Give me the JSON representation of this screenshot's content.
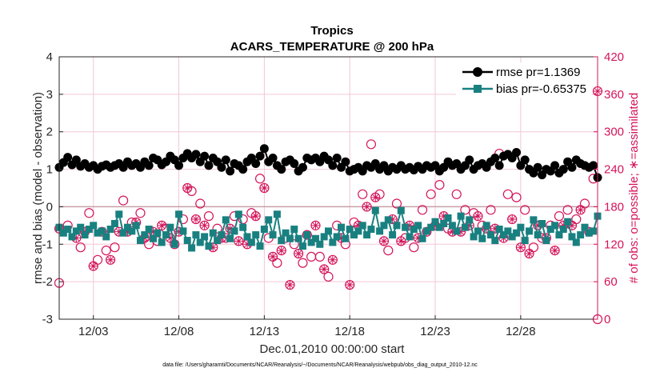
{
  "chart_data": {
    "type": "line",
    "title": "Tropics",
    "subtitle": "ACARS_TEMPERATURE @ 200 hPa",
    "xlabel": "Dec.01,2010 00:00:00 start",
    "ylabel": "rmse and bias (model - observation)",
    "ylabel_right": "# of obs: o=possible; ∗=assimilated",
    "footnote": "data file: /Users/gharamti/Documents/NCAR/Reanalysis/~/Documents/NCAR/Reanalysis/webpub/obs_diag_output_2010-12.nc",
    "xlim": [
      1,
      32.5
    ],
    "ylim": [
      -3,
      4
    ],
    "ylim_right": [
      0,
      420
    ],
    "x_ticks": [
      3,
      8,
      13,
      18,
      23,
      28
    ],
    "x_tick_labels": [
      "12/03",
      "12/08",
      "12/13",
      "12/18",
      "12/23",
      "12/28"
    ],
    "y_ticks": [
      "4",
      "3",
      "2",
      "1",
      "0",
      "-1",
      "-2",
      "-3"
    ],
    "y_ticks_right": [
      "420",
      "360",
      "300",
      "240",
      "180",
      "120",
      "60",
      "0"
    ],
    "x": [
      1.0,
      1.25,
      1.5,
      1.75,
      2.0,
      2.25,
      2.5,
      2.75,
      3.0,
      3.25,
      3.5,
      3.75,
      4.0,
      4.25,
      4.5,
      4.75,
      5.0,
      5.25,
      5.5,
      5.75,
      6.0,
      6.25,
      6.5,
      6.75,
      7.0,
      7.25,
      7.5,
      7.75,
      8.0,
      8.25,
      8.5,
      8.75,
      9.0,
      9.25,
      9.5,
      9.75,
      10.0,
      10.25,
      10.5,
      10.75,
      11.0,
      11.25,
      11.5,
      11.75,
      12.0,
      12.25,
      12.5,
      12.75,
      13.0,
      13.25,
      13.5,
      13.75,
      14.0,
      14.25,
      14.5,
      14.75,
      15.0,
      15.25,
      15.5,
      15.75,
      16.0,
      16.25,
      16.5,
      16.75,
      17.0,
      17.25,
      17.5,
      17.75,
      18.0,
      18.25,
      18.5,
      18.75,
      19.0,
      19.25,
      19.5,
      19.75,
      20.0,
      20.25,
      20.5,
      20.75,
      21.0,
      21.25,
      21.5,
      21.75,
      22.0,
      22.25,
      22.5,
      22.75,
      23.0,
      23.25,
      23.5,
      23.75,
      24.0,
      24.25,
      24.5,
      24.75,
      25.0,
      25.25,
      25.5,
      25.75,
      26.0,
      26.25,
      26.5,
      26.75,
      27.0,
      27.25,
      27.5,
      27.75,
      28.0,
      28.25,
      28.5,
      28.75,
      29.0,
      29.25,
      29.5,
      29.75,
      30.0,
      30.25,
      30.5,
      30.75,
      31.0,
      31.25,
      31.5,
      31.75,
      32.0,
      32.25,
      32.5
    ],
    "series": [
      {
        "name": "rmse pr=1.1369",
        "color": "#000000",
        "marker": "circle",
        "values": [
          1.05,
          1.18,
          1.32,
          1.12,
          1.25,
          1.08,
          1.15,
          1.05,
          1.1,
          1.0,
          1.08,
          1.12,
          1.05,
          1.1,
          1.15,
          1.05,
          1.2,
          1.1,
          1.15,
          1.05,
          1.2,
          1.1,
          1.3,
          1.25,
          1.12,
          1.2,
          1.35,
          1.25,
          1.1,
          1.3,
          1.42,
          1.3,
          1.4,
          1.2,
          1.35,
          1.1,
          1.3,
          1.2,
          1.05,
          1.25,
          0.95,
          1.15,
          1.1,
          1.0,
          1.2,
          1.3,
          1.15,
          1.35,
          1.55,
          1.2,
          1.3,
          1.1,
          1.0,
          1.2,
          1.25,
          1.15,
          0.95,
          1.05,
          1.3,
          1.25,
          1.3,
          1.2,
          1.35,
          1.25,
          1.1,
          1.3,
          1.05,
          1.2,
          0.95,
          1.0,
          1.05,
          0.95,
          1.1,
          1.05,
          1.15,
          1.0,
          1.1,
          0.95,
          1.05,
          1.0,
          1.1,
          1.0,
          1.05,
          0.98,
          1.08,
          1.0,
          1.1,
          1.05,
          1.1,
          0.95,
          1.05,
          1.2,
          1.1,
          1.15,
          1.0,
          1.1,
          1.25,
          1.0,
          1.1,
          1.15,
          1.05,
          1.2,
          1.3,
          1.1,
          1.35,
          1.4,
          1.3,
          1.45,
          1.1,
          1.25,
          1.0,
          0.9,
          1.05,
          0.85,
          1.0,
          0.95,
          1.1,
          0.9,
          1.0,
          1.2,
          1.05,
          1.25,
          1.15,
          1.1,
          1.05,
          1.1,
          0.78
        ]
      },
      {
        "name": "bias pr=-0.65375",
        "color": "#198080",
        "marker": "square",
        "values": [
          -0.55,
          -0.7,
          -0.6,
          -0.8,
          -0.65,
          -0.55,
          -0.75,
          -0.6,
          -0.5,
          -0.7,
          -0.65,
          -0.8,
          -0.6,
          -0.45,
          -0.2,
          -0.7,
          -0.55,
          -0.65,
          -0.5,
          -0.9,
          -0.75,
          -0.6,
          -0.85,
          -0.7,
          -0.95,
          -0.75,
          -0.55,
          -1.0,
          -0.2,
          -0.65,
          -0.9,
          -1.1,
          -0.75,
          -0.95,
          -0.8,
          -1.05,
          -0.7,
          -0.9,
          -0.75,
          -0.35,
          -0.85,
          -0.65,
          -0.2,
          -0.55,
          -0.8,
          -0.95,
          -0.75,
          -1.05,
          -0.6,
          -0.35,
          -0.75,
          -0.2,
          -0.9,
          -0.7,
          -0.85,
          -0.6,
          -0.85,
          -1.05,
          -0.75,
          -0.95,
          -0.85,
          -1.0,
          -0.8,
          -0.65,
          -0.95,
          -0.8,
          -0.55,
          -0.85,
          -0.6,
          -0.75,
          -0.65,
          -0.5,
          -0.75,
          -0.6,
          -0.1,
          -0.65,
          -0.5,
          -0.35,
          -0.75,
          -0.5,
          -0.1,
          -0.55,
          -0.8,
          -0.6,
          -0.5,
          -0.85,
          -0.65,
          -0.55,
          -0.4,
          -0.55,
          -0.45,
          -0.3,
          -0.5,
          -0.65,
          -0.25,
          -0.55,
          -0.35,
          -0.8,
          -0.65,
          -0.85,
          -0.5,
          -0.75,
          -0.9,
          -0.6,
          -0.75,
          -0.65,
          -0.8,
          -0.7,
          -0.55,
          -0.9,
          -0.65,
          -0.35,
          -0.75,
          -0.45,
          -0.9,
          -0.6,
          -0.5,
          -0.75,
          -0.6,
          -0.4,
          -0.8,
          -0.95,
          -0.75,
          -0.55,
          -0.7,
          -0.65,
          -0.25
        ]
      }
    ],
    "obs": {
      "color": "#d4145a",
      "possible": [
        [
          1.0,
          58
        ],
        [
          1.5,
          150
        ],
        [
          2.25,
          115
        ],
        [
          2.75,
          170
        ],
        [
          3.25,
          95
        ],
        [
          3.75,
          110
        ],
        [
          4.25,
          115
        ],
        [
          4.75,
          190
        ],
        [
          5.25,
          155
        ],
        [
          5.75,
          170
        ],
        [
          6.25,
          120
        ],
        [
          6.75,
          125
        ],
        [
          7.25,
          145
        ],
        [
          7.75,
          120
        ],
        [
          8.25,
          160
        ],
        [
          8.75,
          205
        ],
        [
          9.25,
          185
        ],
        [
          9.75,
          165
        ],
        [
          10.25,
          145
        ],
        [
          10.75,
          130
        ],
        [
          11.25,
          165
        ],
        [
          11.75,
          160
        ],
        [
          12.25,
          170
        ],
        [
          12.75,
          225
        ],
        [
          13.25,
          130
        ],
        [
          13.75,
          90
        ],
        [
          14.25,
          130
        ],
        [
          14.75,
          120
        ],
        [
          15.25,
          90
        ],
        [
          15.75,
          100
        ],
        [
          16.25,
          100
        ],
        [
          16.75,
          68
        ],
        [
          17.25,
          150
        ],
        [
          17.75,
          120
        ],
        [
          18.25,
          155
        ],
        [
          18.75,
          200
        ],
        [
          19.25,
          280
        ],
        [
          19.75,
          200
        ],
        [
          20.25,
          110
        ],
        [
          20.75,
          185
        ],
        [
          21.25,
          130
        ],
        [
          21.75,
          115
        ],
        [
          22.25,
          175
        ],
        [
          22.75,
          200
        ],
        [
          23.25,
          215
        ],
        [
          23.75,
          145
        ],
        [
          24.25,
          200
        ],
        [
          24.75,
          175
        ],
        [
          25.25,
          170
        ],
        [
          25.75,
          150
        ],
        [
          26.25,
          175
        ],
        [
          26.75,
          265
        ],
        [
          27.25,
          200
        ],
        [
          27.75,
          195
        ],
        [
          28.25,
          175
        ],
        [
          28.75,
          115
        ],
        [
          29.25,
          130
        ],
        [
          29.75,
          150
        ],
        [
          30.25,
          165
        ],
        [
          30.75,
          175
        ],
        [
          31.25,
          160
        ],
        [
          31.75,
          185
        ],
        [
          32.25,
          225
        ],
        [
          32.5,
          0
        ]
      ],
      "assimilated": [
        [
          1.0,
          145
        ],
        [
          2.0,
          130
        ],
        [
          2.5,
          140
        ],
        [
          3.0,
          85
        ],
        [
          3.5,
          140
        ],
        [
          4.0,
          95
        ],
        [
          4.5,
          140
        ],
        [
          5.0,
          140
        ],
        [
          5.5,
          155
        ],
        [
          6.0,
          130
        ],
        [
          6.5,
          140
        ],
        [
          7.0,
          150
        ],
        [
          7.5,
          130
        ],
        [
          8.0,
          140
        ],
        [
          8.5,
          210
        ],
        [
          9.0,
          160
        ],
        [
          9.5,
          150
        ],
        [
          10.0,
          115
        ],
        [
          10.5,
          130
        ],
        [
          11.0,
          145
        ],
        [
          11.5,
          125
        ],
        [
          12.0,
          120
        ],
        [
          12.5,
          165
        ],
        [
          13.0,
          210
        ],
        [
          13.5,
          100
        ],
        [
          14.0,
          110
        ],
        [
          14.5,
          55
        ],
        [
          15.0,
          105
        ],
        [
          15.5,
          135
        ],
        [
          16.0,
          150
        ],
        [
          16.5,
          80
        ],
        [
          17.0,
          95
        ],
        [
          17.5,
          130
        ],
        [
          18.0,
          55
        ],
        [
          18.5,
          150
        ],
        [
          19.0,
          180
        ],
        [
          19.5,
          195
        ],
        [
          20.0,
          125
        ],
        [
          20.5,
          160
        ],
        [
          21.0,
          125
        ],
        [
          21.5,
          150
        ],
        [
          22.0,
          130
        ],
        [
          22.5,
          140
        ],
        [
          23.0,
          150
        ],
        [
          23.5,
          165
        ],
        [
          24.0,
          140
        ],
        [
          24.5,
          140
        ],
        [
          25.0,
          150
        ],
        [
          25.5,
          165
        ],
        [
          26.0,
          145
        ],
        [
          26.5,
          145
        ],
        [
          27.0,
          130
        ],
        [
          27.5,
          160
        ],
        [
          28.0,
          115
        ],
        [
          28.5,
          105
        ],
        [
          29.0,
          150
        ],
        [
          29.5,
          130
        ],
        [
          30.0,
          110
        ],
        [
          30.5,
          150
        ],
        [
          31.0,
          150
        ],
        [
          31.5,
          175
        ],
        [
          32.0,
          140
        ],
        [
          32.5,
          365
        ]
      ]
    },
    "zero_line": true,
    "legend_location": "top-right"
  }
}
